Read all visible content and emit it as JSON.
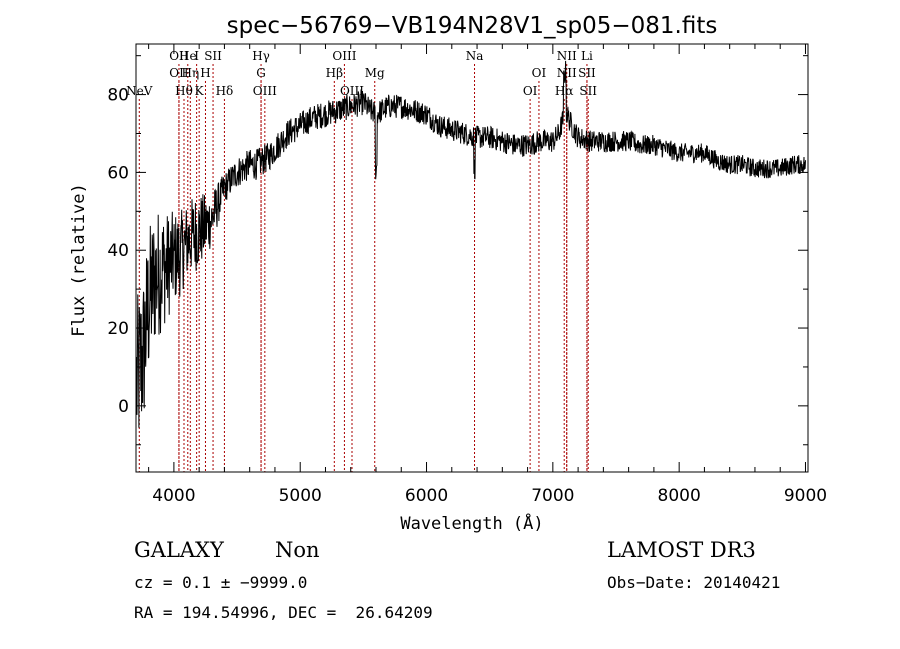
{
  "chart_data": {
    "type": "line",
    "title": "spec−56769−VB194N28V1_sp05−081.fits",
    "xlabel": "Wavelength (Å)",
    "ylabel": "Flux (relative)",
    "xlim": [
      3700,
      9020
    ],
    "ylim": [
      -17,
      93
    ],
    "xticks": [
      4000,
      5000,
      6000,
      7000,
      8000,
      9000
    ],
    "yticks": [
      0,
      20,
      40,
      60,
      80
    ],
    "spectrum_anchors": {
      "x": [
        3700,
        3760,
        3800,
        3850,
        3900,
        3950,
        4000,
        4050,
        4100,
        4150,
        4200,
        4250,
        4300,
        4350,
        4400,
        4450,
        4500,
        4550,
        4600,
        4650,
        4700,
        4750,
        4800,
        4850,
        4900,
        4950,
        5000,
        5100,
        5200,
        5300,
        5400,
        5500,
        5550,
        5600,
        5700,
        5800,
        5900,
        6000,
        6100,
        6200,
        6300,
        6400,
        6500,
        6600,
        6700,
        6800,
        6900,
        7000,
        7050,
        7100,
        7150,
        7200,
        7300,
        7400,
        7500,
        7600,
        7700,
        7800,
        7900,
        8000,
        8100,
        8200,
        8300,
        8400,
        8500,
        8600,
        8700,
        8800,
        8900,
        9000
      ],
      "y": [
        5,
        14,
        26,
        33,
        35,
        36,
        38,
        39,
        42,
        44,
        45,
        46,
        48,
        52,
        56,
        58,
        60,
        61,
        62,
        62,
        63,
        64,
        66,
        68,
        70,
        71,
        72,
        74,
        75,
        76,
        77,
        78,
        76,
        75,
        77,
        77,
        76,
        75,
        72,
        71,
        70,
        69,
        69,
        68,
        67,
        67,
        68,
        68,
        70,
        76,
        72,
        69,
        68,
        68,
        68,
        68,
        67,
        67,
        66,
        65,
        65,
        65,
        63,
        62,
        62,
        61,
        61,
        61,
        62,
        62
      ]
    },
    "noise_anchors": {
      "x": [
        3700,
        3800,
        3900,
        4000,
        4100,
        4200,
        4300,
        4400,
        4600,
        5000,
        6000,
        7000,
        8000,
        9000
      ],
      "amp": [
        22,
        20,
        16,
        12,
        10,
        10,
        7,
        4,
        4,
        3.5,
        3,
        3,
        2.5,
        2.5
      ]
    },
    "spectral_lines": [
      {
        "name": "NeV",
        "wave": 3726,
        "row": 3
      },
      {
        "name": "OII",
        "wave": 4040,
        "row": 1
      },
      {
        "name": "OII",
        "wave": 4040,
        "row": 2
      },
      {
        "name": "Hθ",
        "wave": 4080,
        "row": 3
      },
      {
        "name": "He",
        "wave": 4110,
        "row": 1
      },
      {
        "name": "Hη",
        "wave": 4130,
        "row": 2
      },
      {
        "name": "I",
        "wave": 4180,
        "row": 1
      },
      {
        "name": "K",
        "wave": 4200,
        "row": 3
      },
      {
        "name": "H",
        "wave": 4250,
        "row": 2
      },
      {
        "name": "SII",
        "wave": 4310,
        "row": 1
      },
      {
        "name": "Hδ",
        "wave": 4400,
        "row": 3
      },
      {
        "name": "Hγ",
        "wave": 4690,
        "row": 1
      },
      {
        "name": "G",
        "wave": 4690,
        "row": 2
      },
      {
        "name": "OIII",
        "wave": 4720,
        "row": 3
      },
      {
        "name": "OIII",
        "wave": 5350,
        "row": 1
      },
      {
        "name": "Hβ",
        "wave": 5270,
        "row": 2
      },
      {
        "name": "OIII",
        "wave": 5410,
        "row": 3
      },
      {
        "name": "Mg",
        "wave": 5590,
        "row": 2
      },
      {
        "name": "Na",
        "wave": 6380,
        "row": 1
      },
      {
        "name": "OI",
        "wave": 6890,
        "row": 2
      },
      {
        "name": "OI",
        "wave": 6820,
        "row": 3
      },
      {
        "name": "NII",
        "wave": 7110,
        "row": 1
      },
      {
        "name": "NII",
        "wave": 7110,
        "row": 2
      },
      {
        "name": "Hα",
        "wave": 7090,
        "row": 3
      },
      {
        "name": "Li",
        "wave": 7270,
        "row": 1
      },
      {
        "name": "SII",
        "wave": 7270,
        "row": 2
      },
      {
        "name": "SII",
        "wave": 7280,
        "row": 3
      }
    ]
  },
  "info": {
    "class_label": "GALAXY",
    "subclass_label": "Non",
    "survey": "LAMOST DR3",
    "cz_line": "cz = 0.1 ± −9999.0",
    "obs_date": "Obs−Date: 20140421",
    "radec_line": "RA = 194.54996, DEC =  26.64209"
  },
  "colors": {
    "line_marker": "#aa0000",
    "spectrum": "#000000"
  }
}
